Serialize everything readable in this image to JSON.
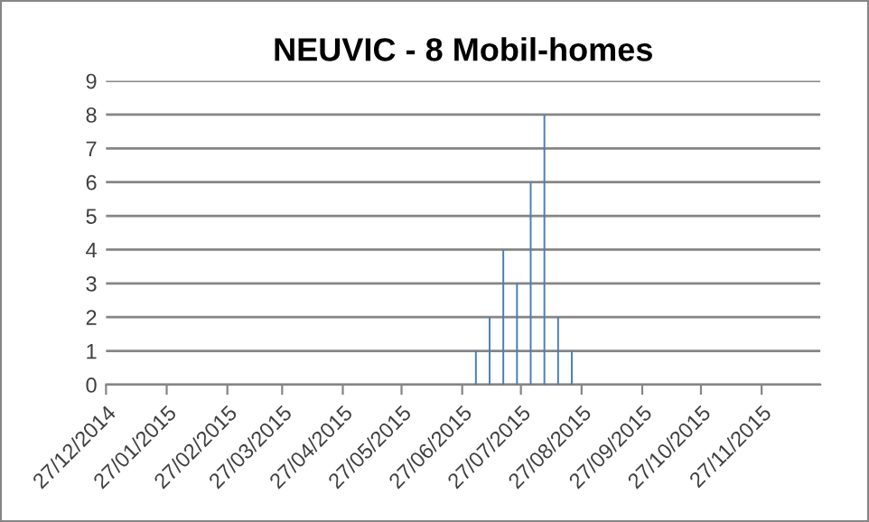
{
  "chart_data": {
    "type": "bar",
    "title": "NEUVIC - 8 Mobil-homes",
    "x": [
      "2015-07-04",
      "2015-07-11",
      "2015-07-18",
      "2015-07-25",
      "2015-08-01",
      "2015-08-08",
      "2015-08-15",
      "2015-08-22"
    ],
    "values": [
      1,
      2,
      4,
      3,
      6,
      8,
      2,
      1
    ],
    "color": "#4a7ebb",
    "xlim": [
      "2014-12-27",
      "2015-12-27"
    ],
    "xticks": [
      {
        "value": "2014-12-27",
        "label": "27/12/2014"
      },
      {
        "value": "2015-01-27",
        "label": "27/01/2015"
      },
      {
        "value": "2015-02-27",
        "label": "27/02/2015"
      },
      {
        "value": "2015-03-27",
        "label": "27/03/2015"
      },
      {
        "value": "2015-04-27",
        "label": "27/04/2015"
      },
      {
        "value": "2015-05-27",
        "label": "27/05/2015"
      },
      {
        "value": "2015-06-27",
        "label": "27/06/2015"
      },
      {
        "value": "2015-07-27",
        "label": "27/07/2015"
      },
      {
        "value": "2015-08-27",
        "label": "27/08/2015"
      },
      {
        "value": "2015-09-27",
        "label": "27/09/2015"
      },
      {
        "value": "2015-10-27",
        "label": "27/10/2015"
      },
      {
        "value": "2015-11-27",
        "label": "27/11/2015"
      }
    ],
    "ylim": [
      0,
      9
    ],
    "yticks": [
      0,
      1,
      2,
      3,
      4,
      5,
      6,
      7,
      8,
      9
    ],
    "grid": "y",
    "legend": false
  }
}
